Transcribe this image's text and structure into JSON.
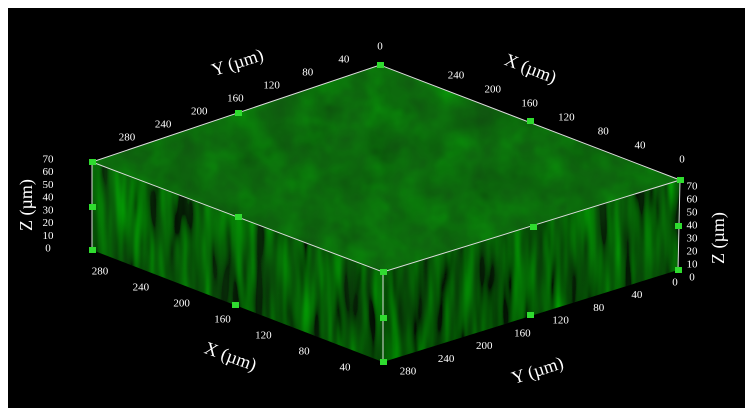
{
  "axes": {
    "top_y": {
      "title": "Y (µm)",
      "ticks": [
        "0",
        "40",
        "80",
        "120",
        "160",
        "200",
        "240",
        "280"
      ]
    },
    "top_x": {
      "title": "X (µm)",
      "ticks": [
        "240",
        "200",
        "160",
        "120",
        "80",
        "40",
        "0"
      ]
    },
    "left_z": {
      "title": "Z (µm)",
      "ticks": [
        "70",
        "60",
        "50",
        "40",
        "30",
        "20",
        "10",
        "0"
      ]
    },
    "right_z": {
      "title": "Z (µm)",
      "ticks": [
        "70",
        "60",
        "50",
        "40",
        "30",
        "20",
        "10",
        "0"
      ]
    },
    "bottom_x": {
      "title": "X (µm)",
      "ticks": [
        "280",
        "240",
        "200",
        "160",
        "120",
        "80",
        "40"
      ]
    },
    "bottom_y": {
      "title": "Y (µm)",
      "ticks": [
        "280",
        "240",
        "200",
        "160",
        "120",
        "80",
        "40",
        "0"
      ]
    }
  }
}
